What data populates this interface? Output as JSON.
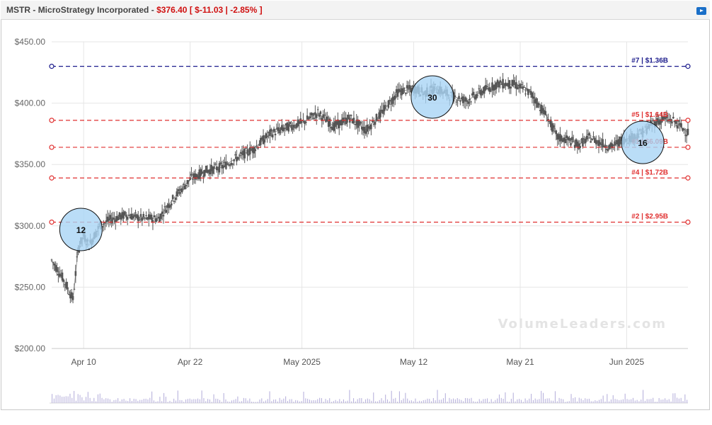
{
  "header": {
    "ticker": "MSTR",
    "company": "MicroStrategy Incorporated",
    "price": "$376.40",
    "change": "$-11.03",
    "change_pct": "-2.85%"
  },
  "watermark": "VolumeLeaders.com",
  "colors": {
    "candle": "#555555",
    "level_red": "#e03030",
    "level_blue": "#1c1c8c",
    "bubble_fill": "#a9d4f5",
    "volume": "#b9b3dd"
  },
  "chart_data": {
    "type": "line",
    "title": "",
    "xlabel": "",
    "ylabel": "",
    "ylim": [
      200,
      450
    ],
    "y_ticks": [
      "$450.00",
      "$400.00",
      "$350.00",
      "$300.00",
      "$250.00",
      "$200.00"
    ],
    "y_tick_values": [
      450,
      400,
      350,
      300,
      250,
      200
    ],
    "x_ticks": [
      "Apr 10",
      "Apr 22",
      "May 2025",
      "May 12",
      "May 21",
      "Jun 2025"
    ],
    "x_tick_positions": [
      12,
      52,
      94,
      136,
      176,
      216
    ],
    "x_range": [
      0,
      239
    ],
    "grid": true,
    "series": [
      {
        "x": [
          0,
          4,
          8,
          10,
          12,
          14,
          18,
          22,
          28,
          34,
          40,
          46,
          52,
          58,
          64,
          70,
          76,
          82,
          88,
          94,
          100,
          106,
          112,
          118,
          124,
          130,
          136,
          140,
          144,
          150,
          156,
          162,
          168,
          174,
          180,
          186,
          190,
          194,
          198,
          202,
          206,
          210,
          214,
          218,
          222,
          226,
          230,
          234,
          239
        ],
        "values": [
          272,
          258,
          240,
          282,
          292,
          284,
          300,
          305,
          309,
          306,
          306,
          323,
          338,
          345,
          348,
          356,
          363,
          375,
          380,
          384,
          392,
          381,
          388,
          378,
          392,
          409,
          412,
          408,
          412,
          406,
          402,
          410,
          416,
          415,
          408,
          389,
          372,
          370,
          366,
          372,
          368,
          364,
          370,
          372,
          376,
          384,
          387,
          385,
          376
        ]
      }
    ],
    "levels": [
      {
        "rank": "#7",
        "value": 430,
        "label": "#7 | $1.36B",
        "color": "blue"
      },
      {
        "rank": "#5",
        "value": 386,
        "label": "#5 | $1.64B",
        "color": "red"
      },
      {
        "rank": "#1",
        "value": 364,
        "label": "#1 | $6.09B",
        "color": "red"
      },
      {
        "rank": "#4",
        "value": 339,
        "label": "#4 | $1.72B",
        "color": "red"
      },
      {
        "rank": "#2",
        "value": 303,
        "label": "#2 | $2.95B",
        "color": "red"
      }
    ],
    "bubbles": [
      {
        "x": 11,
        "value": 297,
        "label": "12"
      },
      {
        "x": 143,
        "value": 405,
        "label": "30"
      },
      {
        "x": 222,
        "value": 368,
        "label": "16"
      }
    ]
  }
}
